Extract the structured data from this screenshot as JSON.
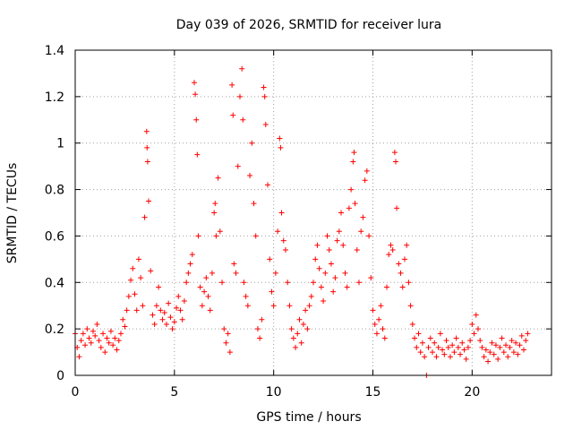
{
  "chart_data": {
    "type": "scatter",
    "title": "Day 039 of 2026, SRMTID for receiver lura",
    "xlabel": "GPS time / hours",
    "ylabel": "SRMTID / TECUs",
    "xlim": [
      0,
      24
    ],
    "ylim": [
      0,
      1.4
    ],
    "xticks": [
      0,
      5,
      10,
      15,
      20
    ],
    "xtick_labels": [
      "0",
      "5",
      "10",
      "15",
      "20"
    ],
    "yticks": [
      0,
      0.2,
      0.4,
      0.6,
      0.8,
      1,
      1.2,
      1.4
    ],
    "ytick_labels": [
      "0",
      "0.2",
      "0.4",
      "0.6",
      "0.8",
      "1",
      "1.2",
      "1.4"
    ],
    "grid": true,
    "marker": "plus",
    "color": "#ff0000",
    "series": [
      {
        "name": "SRMTID",
        "points": [
          [
            0.0,
            0.18
          ],
          [
            0.1,
            0.12
          ],
          [
            0.2,
            0.08
          ],
          [
            0.3,
            0.15
          ],
          [
            0.4,
            0.18
          ],
          [
            0.5,
            0.13
          ],
          [
            0.6,
            0.2
          ],
          [
            0.7,
            0.16
          ],
          [
            0.8,
            0.14
          ],
          [
            0.9,
            0.19
          ],
          [
            1.0,
            0.17
          ],
          [
            1.1,
            0.22
          ],
          [
            1.2,
            0.15
          ],
          [
            1.3,
            0.12
          ],
          [
            1.4,
            0.18
          ],
          [
            1.5,
            0.1
          ],
          [
            1.6,
            0.16
          ],
          [
            1.7,
            0.14
          ],
          [
            1.8,
            0.19
          ],
          [
            1.9,
            0.13
          ],
          [
            2.0,
            0.16
          ],
          [
            2.1,
            0.11
          ],
          [
            2.2,
            0.15
          ],
          [
            2.3,
            0.18
          ],
          [
            2.4,
            0.24
          ],
          [
            2.5,
            0.21
          ],
          [
            2.6,
            0.28
          ],
          [
            2.7,
            0.34
          ],
          [
            2.8,
            0.41
          ],
          [
            2.9,
            0.46
          ],
          [
            3.0,
            0.35
          ],
          [
            3.1,
            0.28
          ],
          [
            3.2,
            0.5
          ],
          [
            3.3,
            0.42
          ],
          [
            3.4,
            0.3
          ],
          [
            3.5,
            0.68
          ],
          [
            3.6,
            1.05
          ],
          [
            3.62,
            0.98
          ],
          [
            3.65,
            0.92
          ],
          [
            3.7,
            0.75
          ],
          [
            3.8,
            0.45
          ],
          [
            3.9,
            0.26
          ],
          [
            4.0,
            0.22
          ],
          [
            4.1,
            0.3
          ],
          [
            4.2,
            0.38
          ],
          [
            4.3,
            0.28
          ],
          [
            4.4,
            0.24
          ],
          [
            4.5,
            0.27
          ],
          [
            4.6,
            0.22
          ],
          [
            4.7,
            0.31
          ],
          [
            4.8,
            0.25
          ],
          [
            4.9,
            0.2
          ],
          [
            5.0,
            0.23
          ],
          [
            5.1,
            0.29
          ],
          [
            5.2,
            0.34
          ],
          [
            5.3,
            0.28
          ],
          [
            5.4,
            0.24
          ],
          [
            5.5,
            0.32
          ],
          [
            5.6,
            0.4
          ],
          [
            5.7,
            0.44
          ],
          [
            5.8,
            0.48
          ],
          [
            5.9,
            0.52
          ],
          [
            6.0,
            1.26
          ],
          [
            6.05,
            1.21
          ],
          [
            6.1,
            1.1
          ],
          [
            6.15,
            0.95
          ],
          [
            6.2,
            0.6
          ],
          [
            6.3,
            0.38
          ],
          [
            6.4,
            0.3
          ],
          [
            6.5,
            0.36
          ],
          [
            6.6,
            0.42
          ],
          [
            6.7,
            0.34
          ],
          [
            6.8,
            0.28
          ],
          [
            6.9,
            0.44
          ],
          [
            7.0,
            0.7
          ],
          [
            7.05,
            0.74
          ],
          [
            7.1,
            0.6
          ],
          [
            7.2,
            0.85
          ],
          [
            7.3,
            0.62
          ],
          [
            7.4,
            0.4
          ],
          [
            7.5,
            0.2
          ],
          [
            7.6,
            0.14
          ],
          [
            7.7,
            0.18
          ],
          [
            7.8,
            0.1
          ],
          [
            7.9,
            1.25
          ],
          [
            7.95,
            1.12
          ],
          [
            8.0,
            0.48
          ],
          [
            8.1,
            0.44
          ],
          [
            8.2,
            0.9
          ],
          [
            8.3,
            1.2
          ],
          [
            8.4,
            1.32
          ],
          [
            8.45,
            1.1
          ],
          [
            8.5,
            0.4
          ],
          [
            8.6,
            0.34
          ],
          [
            8.7,
            0.3
          ],
          [
            8.8,
            0.86
          ],
          [
            8.9,
            1.0
          ],
          [
            9.0,
            0.74
          ],
          [
            9.1,
            0.6
          ],
          [
            9.2,
            0.2
          ],
          [
            9.3,
            0.16
          ],
          [
            9.4,
            0.24
          ],
          [
            9.5,
            1.24
          ],
          [
            9.55,
            1.2
          ],
          [
            9.6,
            1.08
          ],
          [
            9.7,
            0.82
          ],
          [
            9.8,
            0.5
          ],
          [
            9.9,
            0.36
          ],
          [
            10.0,
            0.3
          ],
          [
            10.1,
            0.44
          ],
          [
            10.2,
            0.62
          ],
          [
            10.3,
            1.02
          ],
          [
            10.35,
            0.98
          ],
          [
            10.4,
            0.7
          ],
          [
            10.5,
            0.58
          ],
          [
            10.6,
            0.54
          ],
          [
            10.7,
            0.4
          ],
          [
            10.8,
            0.3
          ],
          [
            10.9,
            0.2
          ],
          [
            11.0,
            0.16
          ],
          [
            11.1,
            0.12
          ],
          [
            11.2,
            0.18
          ],
          [
            11.3,
            0.24
          ],
          [
            11.4,
            0.14
          ],
          [
            11.5,
            0.22
          ],
          [
            11.6,
            0.28
          ],
          [
            11.7,
            0.2
          ],
          [
            11.8,
            0.3
          ],
          [
            11.9,
            0.34
          ],
          [
            12.0,
            0.4
          ],
          [
            12.1,
            0.5
          ],
          [
            12.2,
            0.56
          ],
          [
            12.3,
            0.46
          ],
          [
            12.4,
            0.38
          ],
          [
            12.5,
            0.32
          ],
          [
            12.6,
            0.44
          ],
          [
            12.7,
            0.6
          ],
          [
            12.8,
            0.54
          ],
          [
            12.9,
            0.48
          ],
          [
            13.0,
            0.36
          ],
          [
            13.1,
            0.42
          ],
          [
            13.2,
            0.58
          ],
          [
            13.3,
            0.62
          ],
          [
            13.4,
            0.7
          ],
          [
            13.5,
            0.56
          ],
          [
            13.6,
            0.44
          ],
          [
            13.7,
            0.38
          ],
          [
            13.8,
            0.72
          ],
          [
            13.9,
            0.8
          ],
          [
            14.0,
            0.92
          ],
          [
            14.05,
            0.96
          ],
          [
            14.1,
            0.74
          ],
          [
            14.2,
            0.54
          ],
          [
            14.3,
            0.4
          ],
          [
            14.4,
            0.62
          ],
          [
            14.5,
            0.68
          ],
          [
            14.6,
            0.84
          ],
          [
            14.7,
            0.88
          ],
          [
            14.8,
            0.6
          ],
          [
            14.9,
            0.42
          ],
          [
            15.0,
            0.28
          ],
          [
            15.1,
            0.22
          ],
          [
            15.2,
            0.18
          ],
          [
            15.3,
            0.24
          ],
          [
            15.4,
            0.3
          ],
          [
            15.5,
            0.2
          ],
          [
            15.6,
            0.16
          ],
          [
            15.7,
            0.38
          ],
          [
            15.8,
            0.52
          ],
          [
            15.9,
            0.56
          ],
          [
            16.0,
            0.54
          ],
          [
            16.1,
            0.96
          ],
          [
            16.15,
            0.92
          ],
          [
            16.2,
            0.72
          ],
          [
            16.3,
            0.48
          ],
          [
            16.4,
            0.44
          ],
          [
            16.5,
            0.38
          ],
          [
            16.6,
            0.5
          ],
          [
            16.7,
            0.56
          ],
          [
            16.8,
            0.4
          ],
          [
            16.9,
            0.3
          ],
          [
            17.0,
            0.22
          ],
          [
            17.1,
            0.16
          ],
          [
            17.2,
            0.12
          ],
          [
            17.3,
            0.18
          ],
          [
            17.4,
            0.1
          ],
          [
            17.5,
            0.14
          ],
          [
            17.6,
            0.08
          ],
          [
            17.7,
            0.0
          ],
          [
            17.8,
            0.12
          ],
          [
            17.9,
            0.16
          ],
          [
            18.0,
            0.1
          ],
          [
            18.1,
            0.14
          ],
          [
            18.2,
            0.08
          ],
          [
            18.3,
            0.12
          ],
          [
            18.4,
            0.18
          ],
          [
            18.5,
            0.11
          ],
          [
            18.6,
            0.09
          ],
          [
            18.7,
            0.15
          ],
          [
            18.8,
            0.12
          ],
          [
            18.9,
            0.08
          ],
          [
            19.0,
            0.13
          ],
          [
            19.1,
            0.1
          ],
          [
            19.2,
            0.16
          ],
          [
            19.3,
            0.12
          ],
          [
            19.4,
            0.09
          ],
          [
            19.5,
            0.14
          ],
          [
            19.6,
            0.11
          ],
          [
            19.7,
            0.07
          ],
          [
            19.8,
            0.12
          ],
          [
            19.9,
            0.15
          ],
          [
            20.0,
            0.22
          ],
          [
            20.1,
            0.18
          ],
          [
            20.2,
            0.26
          ],
          [
            20.3,
            0.2
          ],
          [
            20.4,
            0.15
          ],
          [
            20.5,
            0.12
          ],
          [
            20.6,
            0.08
          ],
          [
            20.7,
            0.11
          ],
          [
            20.8,
            0.06
          ],
          [
            20.9,
            0.1
          ],
          [
            21.0,
            0.14
          ],
          [
            21.1,
            0.09
          ],
          [
            21.2,
            0.13
          ],
          [
            21.3,
            0.07
          ],
          [
            21.4,
            0.12
          ],
          [
            21.5,
            0.16
          ],
          [
            21.6,
            0.1
          ],
          [
            21.7,
            0.13
          ],
          [
            21.8,
            0.08
          ],
          [
            21.9,
            0.12
          ],
          [
            22.0,
            0.15
          ],
          [
            22.1,
            0.1
          ],
          [
            22.2,
            0.14
          ],
          [
            22.3,
            0.09
          ],
          [
            22.4,
            0.13
          ],
          [
            22.5,
            0.17
          ],
          [
            22.6,
            0.11
          ],
          [
            22.7,
            0.15
          ],
          [
            22.8,
            0.18
          ]
        ]
      }
    ]
  }
}
